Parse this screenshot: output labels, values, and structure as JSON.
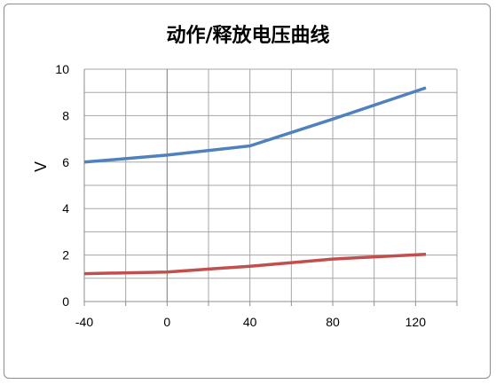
{
  "chart_data": {
    "type": "line",
    "title": "动作/释放电压曲线",
    "ylabel": "V",
    "xlim": [
      -40,
      140
    ],
    "ylim": [
      0,
      10
    ],
    "xticks": [
      -40,
      0,
      40,
      80,
      120
    ],
    "yticks": [
      0,
      2,
      4,
      6,
      8,
      10
    ],
    "x_gridlines": [
      -40,
      -20,
      0,
      20,
      40,
      60,
      80,
      100,
      120,
      140
    ],
    "y_gridlines": [
      0,
      1,
      2,
      3,
      4,
      5,
      6,
      7,
      8,
      9,
      10
    ],
    "grid": true,
    "series": [
      {
        "color": "#4f81bd",
        "points": [
          [
            -40,
            6.0
          ],
          [
            0,
            6.3
          ],
          [
            40,
            6.7
          ],
          [
            80,
            7.85
          ],
          [
            125,
            9.2
          ]
        ]
      },
      {
        "color": "#c0504d",
        "points": [
          [
            -40,
            1.2
          ],
          [
            0,
            1.27
          ],
          [
            40,
            1.52
          ],
          [
            80,
            1.83
          ],
          [
            125,
            2.03
          ]
        ]
      }
    ]
  }
}
